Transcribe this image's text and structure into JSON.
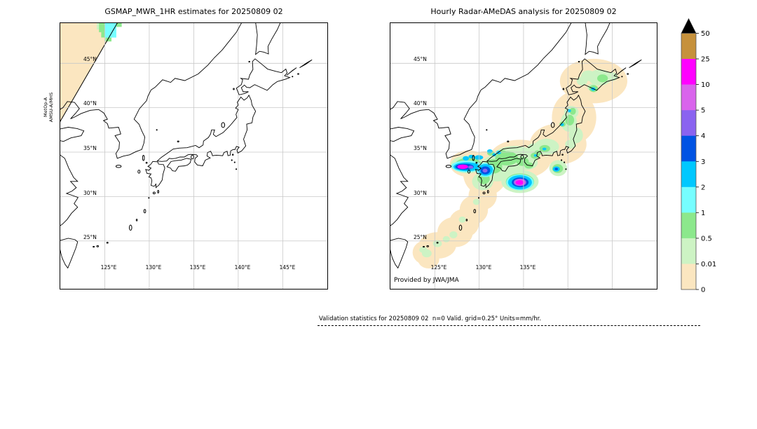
{
  "figure": {
    "background": "#ffffff"
  },
  "left_panel": {
    "title": "GSMAP_MWR_1HR estimates for 20250809 02",
    "satellite_label_line1": "MetOp-A",
    "satellite_label_line2": "AMSU-A/MHS",
    "lat_ticks": [
      "45°N",
      "40°N",
      "35°N",
      "30°N",
      "25°N"
    ],
    "lon_ticks": [
      "125°E",
      "130°E",
      "135°E",
      "140°E",
      "145°E"
    ],
    "lon_gridlines": [
      125,
      130,
      135,
      140,
      145
    ],
    "lat_gridlines": [
      45,
      40,
      35,
      30,
      25
    ]
  },
  "right_panel": {
    "title": "Hourly Radar-AMeDAS analysis for 20250809 02",
    "provider_note": "Provided by JWA/JMA",
    "lat_ticks": [
      "45°N",
      "40°N",
      "35°N",
      "30°N",
      "25°N"
    ],
    "lon_ticks": [
      "125°E",
      "130°E",
      "135°E"
    ],
    "lon_gridlines": [
      125,
      130,
      135,
      140,
      145
    ],
    "lat_gridlines": [
      45,
      40,
      35,
      30,
      25
    ]
  },
  "colorbar": {
    "tick_labels": [
      "50",
      "25",
      "10",
      "5",
      "4",
      "3",
      "2",
      "1",
      "0.5",
      "0.01",
      "0"
    ],
    "segment_colors_top_to_bottom": [
      "#c6913c",
      "#ff00ff",
      "#d964ec",
      "#8a63f0",
      "#0053e3",
      "#00c8ff",
      "#76feff",
      "#8ce88c",
      "#cdf3c4",
      "#fbe6c0"
    ],
    "overflow_marker_color": "#000000"
  },
  "footer": {
    "validation_text": "Validation statistics for 20250809 02  n=0 Valid. grid=0.25° Units=mm/hr."
  },
  "chart_data": {
    "type": "heatmap",
    "units": "mm/hr",
    "grid": "0.25 deg",
    "n": 0,
    "colorbar_levels": [
      0,
      0.01,
      0.5,
      1,
      2,
      3,
      4,
      5,
      10,
      25,
      50
    ],
    "panels": [
      {
        "title": "GSMAP_MWR_1HR estimates for 20250809 02",
        "sensor": "MetOp-A AMSU-A/MHS",
        "lon_range_deg_e": [
          120,
          150
        ],
        "lat_range_deg_n": [
          19.6,
          49.5
        ],
        "coverage": "narrow satellite swath across northwest corner of map only; rest of map has no data",
        "features": [
          {
            "feature": "swath coverage, trace rain 0-0.01",
            "lon_span": [
              120,
              126.5
            ],
            "lat_span": [
              38.3,
              49.5
            ]
          },
          {
            "feature": "rain cell 1-2",
            "lon_span": [
              125.0,
              126.3
            ],
            "lat_span": [
              47.9,
              49.5
            ]
          },
          {
            "feature": "rain fringe 0.5-1",
            "lon_span": [
              124.4,
              125.7
            ],
            "lat_span": [
              47.5,
              49.5
            ]
          }
        ]
      },
      {
        "title": "Hourly Radar-AMeDAS analysis for 20250809 02",
        "lon_range_deg_e": [
          120,
          150
        ],
        "lat_range_deg_n": [
          19.6,
          49.5
        ],
        "coverage": "radar composite band following the Japanese archipelago from Hokkaido to the southwest islands",
        "features": [
          {
            "feature": "heavy rain core 10-25",
            "lon": 128.2,
            "lat": 33.4,
            "location": "sea west of Kyushu"
          },
          {
            "feature": "rain core 4-10",
            "lon": 130.7,
            "lat": 33.0,
            "location": "northwest Kyushu"
          },
          {
            "feature": "heavy rain core 10-25",
            "lon": 134.6,
            "lat": 31.6,
            "location": "sea south of Shikoku"
          },
          {
            "feature": "rain cell 3-5",
            "lon": 138.7,
            "lat": 33.1,
            "location": "sea south of Kanto"
          },
          {
            "feature": "rain cell 2-3",
            "lon": 142.9,
            "lat": 42.1,
            "location": "southeastern Hokkaido"
          },
          {
            "feature": "scattered light rain 0.01-1",
            "location": "throughout radar coverage area"
          }
        ]
      }
    ]
  }
}
